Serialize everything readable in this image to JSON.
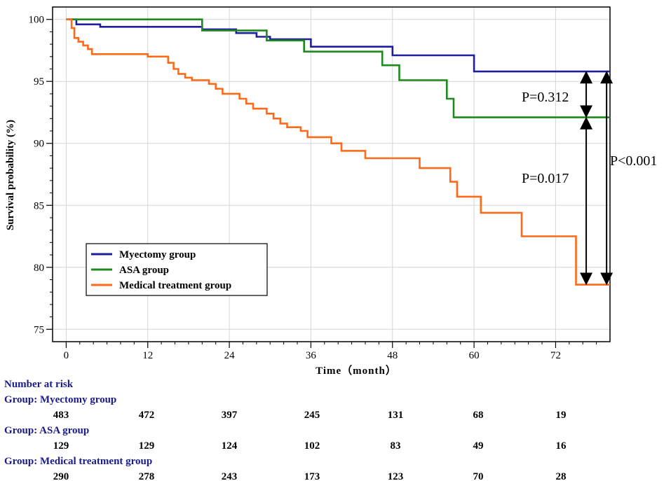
{
  "chart_data": {
    "type": "line",
    "subtype": "kaplan-meier",
    "ylabel": "Survival probability (%)",
    "xlabel": "Time（month）",
    "xlim": [
      -2,
      80
    ],
    "ylim": [
      74,
      101
    ],
    "x_ticks": [
      0,
      12,
      24,
      36,
      48,
      60,
      72
    ],
    "y_ticks": [
      75,
      80,
      85,
      90,
      95,
      100
    ],
    "grid": true,
    "legend_position": "lower-left",
    "series": [
      {
        "name": "Myectomy group",
        "color": "#1f1f9e",
        "points": [
          [
            0,
            100
          ],
          [
            1.5,
            100
          ],
          [
            1.5,
            99.6
          ],
          [
            5,
            99.6
          ],
          [
            5,
            99.4
          ],
          [
            20,
            99.4
          ],
          [
            20,
            99.2
          ],
          [
            25,
            99.2
          ],
          [
            25,
            98.9
          ],
          [
            28,
            98.9
          ],
          [
            28,
            98.6
          ],
          [
            30,
            98.6
          ],
          [
            30,
            98.4
          ],
          [
            36,
            98.4
          ],
          [
            36,
            97.8
          ],
          [
            48,
            97.8
          ],
          [
            48,
            97.1
          ],
          [
            60,
            97.1
          ],
          [
            60,
            95.8
          ],
          [
            80,
            95.8
          ]
        ]
      },
      {
        "name": "ASA group",
        "color": "#1e8a1e",
        "points": [
          [
            0,
            100
          ],
          [
            20,
            100
          ],
          [
            20,
            99.1
          ],
          [
            29.5,
            99.1
          ],
          [
            29.5,
            98.3
          ],
          [
            35,
            98.3
          ],
          [
            35,
            97.4
          ],
          [
            46.5,
            97.4
          ],
          [
            46.5,
            96.3
          ],
          [
            49,
            96.3
          ],
          [
            49,
            95.1
          ],
          [
            56,
            95.1
          ],
          [
            56,
            93.6
          ],
          [
            57,
            93.6
          ],
          [
            57,
            92.1
          ],
          [
            80,
            92.1
          ]
        ]
      },
      {
        "name": "Medical treatment group",
        "color": "#ff6a1a",
        "points": [
          [
            0,
            100
          ],
          [
            0.8,
            100
          ],
          [
            0.8,
            99.3
          ],
          [
            1.2,
            99.3
          ],
          [
            1.2,
            98.5
          ],
          [
            1.8,
            98.5
          ],
          [
            1.8,
            98.2
          ],
          [
            2.5,
            98.2
          ],
          [
            2.5,
            97.9
          ],
          [
            3.2,
            97.9
          ],
          [
            3.2,
            97.6
          ],
          [
            3.8,
            97.6
          ],
          [
            3.8,
            97.2
          ],
          [
            12,
            97.2
          ],
          [
            12,
            97.0
          ],
          [
            15,
            97.0
          ],
          [
            15,
            96.5
          ],
          [
            15.8,
            96.5
          ],
          [
            15.8,
            96.0
          ],
          [
            16.5,
            96.0
          ],
          [
            16.5,
            95.6
          ],
          [
            17.5,
            95.6
          ],
          [
            17.5,
            95.3
          ],
          [
            18.5,
            95.3
          ],
          [
            18.5,
            95.1
          ],
          [
            21,
            95.1
          ],
          [
            21,
            94.8
          ],
          [
            22,
            94.8
          ],
          [
            22,
            94.4
          ],
          [
            23,
            94.4
          ],
          [
            23,
            94.0
          ],
          [
            25.5,
            94.0
          ],
          [
            25.5,
            93.6
          ],
          [
            26.5,
            93.6
          ],
          [
            26.5,
            93.2
          ],
          [
            27.5,
            93.2
          ],
          [
            27.5,
            92.8
          ],
          [
            29.5,
            92.8
          ],
          [
            29.5,
            92.4
          ],
          [
            30.5,
            92.4
          ],
          [
            30.5,
            92.0
          ],
          [
            31.5,
            92.0
          ],
          [
            31.5,
            91.6
          ],
          [
            32.5,
            91.6
          ],
          [
            32.5,
            91.3
          ],
          [
            34.5,
            91.3
          ],
          [
            34.5,
            91.0
          ],
          [
            35.5,
            91.0
          ],
          [
            35.5,
            90.5
          ],
          [
            39,
            90.5
          ],
          [
            39,
            90.0
          ],
          [
            40.5,
            90.0
          ],
          [
            40.5,
            89.4
          ],
          [
            44,
            89.4
          ],
          [
            44,
            88.8
          ],
          [
            52,
            88.8
          ],
          [
            52,
            88.0
          ],
          [
            56.5,
            88.0
          ],
          [
            56.5,
            86.9
          ],
          [
            57.5,
            86.9
          ],
          [
            57.5,
            85.7
          ],
          [
            61,
            85.7
          ],
          [
            61,
            84.4
          ],
          [
            67,
            84.4
          ],
          [
            67,
            82.5
          ],
          [
            75,
            82.5
          ],
          [
            75,
            78.6
          ],
          [
            80,
            78.6
          ]
        ]
      }
    ],
    "annotations": [
      {
        "text": "P=0.312",
        "between": [
          "Myectomy group",
          "ASA group"
        ],
        "x": 76.5,
        "y_from": 95.8,
        "y_to": 92.1
      },
      {
        "text": "P=0.017",
        "between": [
          "ASA group",
          "Medical treatment group"
        ],
        "x": 76.5,
        "y_from": 92.1,
        "y_to": 78.6
      },
      {
        "text": "P<0.001",
        "between": [
          "Myectomy group",
          "Medical treatment group"
        ],
        "x": 79.5,
        "y_from": 95.8,
        "y_to": 78.6
      }
    ]
  },
  "risk_table": {
    "title": "Number at risk",
    "time_points": [
      0,
      12,
      24,
      36,
      48,
      60,
      72
    ],
    "groups": [
      {
        "label": "Group: Myectomy group",
        "values": [
          "483",
          "472",
          "397",
          "245",
          "131",
          "68",
          "19"
        ]
      },
      {
        "label": "Group: ASA group",
        "values": [
          "129",
          "129",
          "124",
          "102",
          "83",
          "49",
          "16"
        ]
      },
      {
        "label": "Group: Medical treatment group",
        "values": [
          "290",
          "278",
          "243",
          "173",
          "123",
          "70",
          "28"
        ]
      }
    ]
  }
}
